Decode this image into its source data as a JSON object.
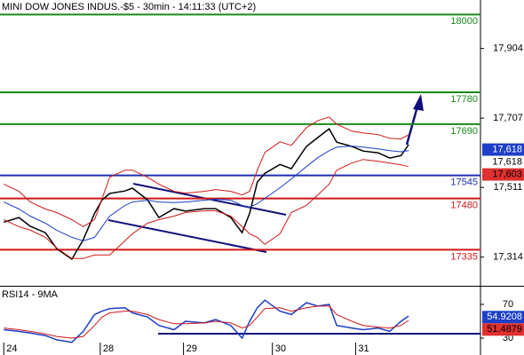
{
  "chart_data": [
    {
      "type": "line",
      "title": "MINI DOW JONES INDUS.-$5 - 30min - 14:11:33 (UTC+2)",
      "x": [
        0,
        4,
        7,
        11,
        14,
        18,
        21,
        24,
        26,
        28,
        32,
        34,
        38,
        41,
        45,
        48,
        53,
        56,
        60,
        63,
        65,
        67,
        69,
        73,
        76,
        80,
        83,
        86,
        88,
        92,
        95,
        99,
        102,
        105,
        107
      ],
      "xlim": [
        -1,
        126
      ],
      "xticks": [
        {
          "value": 0,
          "label": "24"
        },
        {
          "value": 25.5,
          "label": "28"
        },
        {
          "value": 47.5,
          "label": "29"
        },
        {
          "value": 71,
          "label": "30"
        },
        {
          "value": 93,
          "label": "31"
        }
      ],
      "ylim": [
        17233,
        18041
      ],
      "yticks": [
        {
          "value": 17314,
          "label": "17,314"
        },
        {
          "value": 17511,
          "label": "17,511"
        },
        {
          "value": 17707,
          "label": "17,707"
        },
        {
          "value": 17904,
          "label": "17,904"
        }
      ],
      "series": [
        {
          "color": "#000000",
          "values": [
            17413,
            17426,
            17401,
            17383,
            17338,
            17308,
            17363,
            17438,
            17476,
            17494,
            17501,
            17509,
            17476,
            17426,
            17451,
            17444,
            17451,
            17451,
            17426,
            17383,
            17438,
            17526,
            17551,
            17576,
            17564,
            17627,
            17652,
            17677,
            17639,
            17627,
            17614,
            17609,
            17594,
            17601,
            17632
          ]
        },
        {
          "color": "#1c3ec8",
          "values": [
            17470,
            17450,
            17430,
            17410,
            17390,
            17370,
            17360,
            17370,
            17400,
            17430,
            17460,
            17470,
            17475,
            17470,
            17468,
            17470,
            17475,
            17478,
            17475,
            17460,
            17455,
            17465,
            17480,
            17510,
            17535,
            17570,
            17595,
            17615,
            17625,
            17628,
            17625,
            17620,
            17615,
            17612,
            17615
          ]
        },
        {
          "color": "#d01818",
          "values": [
            17520,
            17500,
            17470,
            17450,
            17440,
            17420,
            17400,
            17420,
            17480,
            17540,
            17560,
            17560,
            17540,
            17520,
            17500,
            17495,
            17500,
            17505,
            17500,
            17490,
            17500,
            17560,
            17610,
            17640,
            17630,
            17680,
            17700,
            17710,
            17690,
            17670,
            17665,
            17660,
            17650,
            17648,
            17660
          ]
        },
        {
          "color": "#d01818",
          "values": [
            17420,
            17400,
            17390,
            17370,
            17340,
            17310,
            17310,
            17320,
            17320,
            17320,
            17360,
            17380,
            17410,
            17420,
            17430,
            17440,
            17445,
            17445,
            17430,
            17400,
            17380,
            17370,
            17350,
            17380,
            17440,
            17460,
            17490,
            17520,
            17560,
            17580,
            17590,
            17585,
            17580,
            17575,
            17570
          ]
        }
      ],
      "levels": [
        {
          "value": 18000,
          "color": "#1a8a1a"
        },
        {
          "value": 17780,
          "color": "#1a8a1a"
        },
        {
          "value": 17690,
          "color": "#1a8a1a"
        },
        {
          "value": 17545,
          "color": "#1c2fb0"
        },
        {
          "value": 17480,
          "color": "#d01818"
        },
        {
          "value": 17335,
          "color": "#d01818"
        }
      ],
      "price_labels": [
        {
          "value": 17618,
          "label": "17,618",
          "color": "#1c3ec8"
        },
        {
          "value": 17618,
          "label": "17,618",
          "color": "#ffffff"
        },
        {
          "value": 17603,
          "label": "17,603",
          "color": "#e03030"
        }
      ]
    },
    {
      "type": "line",
      "title": "RSI14 - 9MA",
      "ylim": [
        10,
        91
      ],
      "yticks": [
        30,
        70
      ],
      "series": [
        {
          "color": "#1c3ec8",
          "values": [
            40,
            38,
            36,
            33,
            28,
            25,
            38,
            58,
            62,
            65,
            66,
            60,
            55,
            45,
            40,
            50,
            48,
            52,
            45,
            30,
            50,
            66,
            75,
            62,
            58,
            72,
            68,
            70,
            45,
            42,
            40,
            42,
            38,
            50,
            56
          ]
        },
        {
          "color": "#d01818",
          "values": [
            42,
            40,
            38,
            35,
            32,
            30,
            32,
            45,
            55,
            60,
            62,
            62,
            58,
            52,
            47,
            47,
            48,
            50,
            48,
            42,
            45,
            55,
            65,
            66,
            62,
            66,
            68,
            68,
            58,
            50,
            45,
            43,
            42,
            45,
            51
          ]
        }
      ],
      "price_labels": [
        {
          "value": 54.9208,
          "label": "54.9208",
          "color": "#1c3ec8"
        },
        {
          "value": 51.4879,
          "label": "51.4879",
          "color": "#e03030"
        }
      ]
    }
  ]
}
